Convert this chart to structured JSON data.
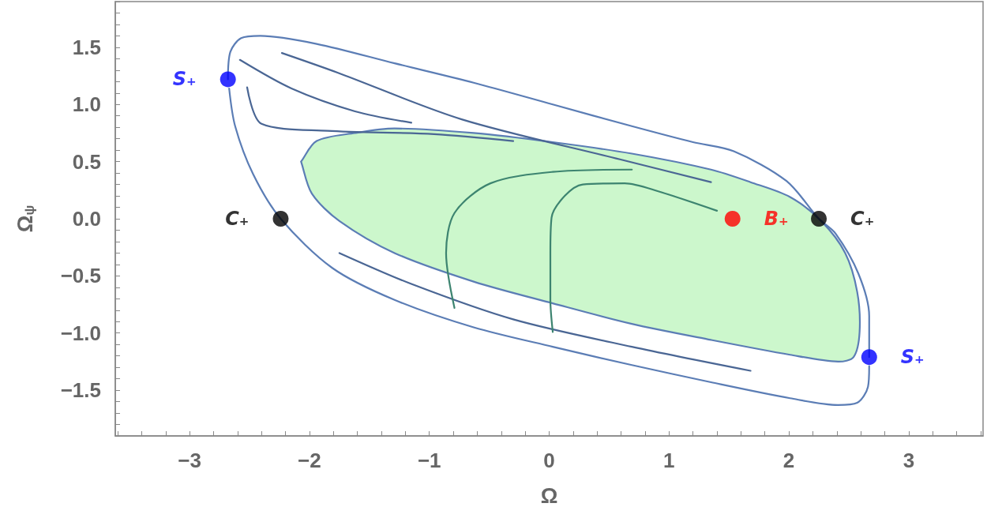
{
  "chart_data": {
    "type": "line",
    "xlabel": "Ω",
    "ylabel": "Ω$_{ψ}$",
    "xlim": [
      -3.62,
      3.62
    ],
    "ylim": [
      -1.9,
      1.9
    ],
    "xticks": [
      {
        "value": -3.6,
        "label": null
      },
      {
        "value": -3.4,
        "label": null
      },
      {
        "value": -3.2,
        "label": null
      },
      {
        "value": -3,
        "label": "−3"
      },
      {
        "value": -2.8,
        "label": null
      },
      {
        "value": -2.6,
        "label": null
      },
      {
        "value": -2.4,
        "label": null
      },
      {
        "value": -2.2,
        "label": null
      },
      {
        "value": -2,
        "label": "−2"
      },
      {
        "value": -1.8,
        "label": null
      },
      {
        "value": -1.6,
        "label": null
      },
      {
        "value": -1.4,
        "label": null
      },
      {
        "value": -1.2,
        "label": null
      },
      {
        "value": -1,
        "label": "−1"
      },
      {
        "value": -0.8,
        "label": null
      },
      {
        "value": -0.6,
        "label": null
      },
      {
        "value": -0.4,
        "label": null
      },
      {
        "value": -0.2,
        "label": null
      },
      {
        "value": 0,
        "label": "0"
      },
      {
        "value": 0.2,
        "label": null
      },
      {
        "value": 0.4,
        "label": null
      },
      {
        "value": 0.6,
        "label": null
      },
      {
        "value": 0.8,
        "label": null
      },
      {
        "value": 1,
        "label": "1"
      },
      {
        "value": 1.2,
        "label": null
      },
      {
        "value": 1.4,
        "label": null
      },
      {
        "value": 1.6,
        "label": null
      },
      {
        "value": 1.8,
        "label": null
      },
      {
        "value": 2,
        "label": "2"
      },
      {
        "value": 2.2,
        "label": null
      },
      {
        "value": 2.4,
        "label": null
      },
      {
        "value": 2.6,
        "label": null
      },
      {
        "value": 2.8,
        "label": null
      },
      {
        "value": 3,
        "label": "3"
      },
      {
        "value": 3.2,
        "label": null
      },
      {
        "value": 3.4,
        "label": null
      },
      {
        "value": 3.6,
        "label": null
      }
    ],
    "yticks": [
      {
        "value": -1.9,
        "label": null
      },
      {
        "value": -1.8,
        "label": null
      },
      {
        "value": -1.7,
        "label": null
      },
      {
        "value": -1.6,
        "label": null
      },
      {
        "value": -1.5,
        "label": "−1.5"
      },
      {
        "value": -1.4,
        "label": null
      },
      {
        "value": -1.3,
        "label": null
      },
      {
        "value": -1.2,
        "label": null
      },
      {
        "value": -1.1,
        "label": null
      },
      {
        "value": -1,
        "label": "−1.0"
      },
      {
        "value": -0.9,
        "label": null
      },
      {
        "value": -0.8,
        "label": null
      },
      {
        "value": -0.7,
        "label": null
      },
      {
        "value": -0.6,
        "label": null
      },
      {
        "value": -0.5,
        "label": "−0.5"
      },
      {
        "value": -0.4,
        "label": null
      },
      {
        "value": -0.3,
        "label": null
      },
      {
        "value": -0.2,
        "label": null
      },
      {
        "value": -0.1,
        "label": null
      },
      {
        "value": 0,
        "label": "0.0"
      },
      {
        "value": 0.1,
        "label": null
      },
      {
        "value": 0.2,
        "label": null
      },
      {
        "value": 0.3,
        "label": null
      },
      {
        "value": 0.4,
        "label": null
      },
      {
        "value": 0.5,
        "label": "0.5"
      },
      {
        "value": 0.6,
        "label": null
      },
      {
        "value": 0.7,
        "label": null
      },
      {
        "value": 0.8,
        "label": null
      },
      {
        "value": 0.9,
        "label": null
      },
      {
        "value": 1,
        "label": "1.0"
      },
      {
        "value": 1.1,
        "label": null
      },
      {
        "value": 1.2,
        "label": null
      },
      {
        "value": 1.3,
        "label": null
      },
      {
        "value": 1.4,
        "label": null
      },
      {
        "value": 1.5,
        "label": "1.5"
      },
      {
        "value": 1.6,
        "label": null
      },
      {
        "value": 1.7,
        "label": null
      },
      {
        "value": 1.8,
        "label": null
      },
      {
        "value": 1.9,
        "label": null
      }
    ],
    "series": [
      {
        "type": "area",
        "color": "#ccf7cc",
        "x": [
          -2.07,
          -1.94,
          -1.62,
          -1.29,
          -0.63,
          0.03,
          0.69,
          1.35,
          1.68,
          2.01,
          2.27,
          2.47,
          2.57,
          2.59,
          2.54,
          2.41,
          2.01,
          1.35,
          0.69,
          0.03,
          -0.63,
          -1.29,
          -1.75,
          -1.98,
          -2.07
        ],
        "values": [
          0.5,
          0.68,
          0.75,
          0.79,
          0.75,
          0.67,
          0.57,
          0.43,
          0.32,
          0.19,
          -0.02,
          -0.3,
          -0.64,
          -0.99,
          -1.21,
          -1.25,
          -1.19,
          -1.06,
          -0.92,
          -0.74,
          -0.55,
          -0.3,
          -0.02,
          0.22,
          0.5
        ]
      },
      {
        "type": "line",
        "color": "#4a6694",
        "x": [
          -2.23,
          -1.77,
          -0.73,
          0.59,
          1.35
        ],
        "values": [
          1.45,
          1.28,
          0.87,
          0.52,
          0.32
        ]
      },
      {
        "type": "line",
        "color": "#4a6694",
        "x": [
          -2.58,
          -2.15,
          -1.62,
          -1.15
        ],
        "values": [
          1.39,
          1.14,
          0.94,
          0.84
        ]
      },
      {
        "type": "line",
        "color": "#4a6694",
        "x": [
          -2.52,
          -2.4,
          -1.85,
          -0.96,
          -0.3
        ],
        "values": [
          1.15,
          0.83,
          0.77,
          0.74,
          0.68
        ]
      },
      {
        "type": "line",
        "color": "#4a6694",
        "x": [
          1.68,
          0.69,
          -0.3,
          -1.15,
          -1.75
        ],
        "values": [
          -1.33,
          -1.12,
          -0.88,
          -0.57,
          -0.3
        ]
      },
      {
        "type": "line",
        "color": "#3d8470",
        "x": [
          0.03,
          0.01,
          0.01,
          0.02,
          0.13,
          0.28,
          0.63,
          0.91,
          1.4
        ],
        "values": [
          -0.99,
          -0.71,
          -0.3,
          0.01,
          0.2,
          0.3,
          0.31,
          0.24,
          0.07
        ]
      },
      {
        "type": "line",
        "color": "#3d8470",
        "x": [
          -0.79,
          -0.86,
          -0.79,
          -0.49,
          0.03,
          0.69
        ],
        "values": [
          -0.78,
          -0.3,
          0.05,
          0.31,
          0.41,
          0.43
        ]
      },
      {
        "type": "line",
        "color": "#5b7db5",
        "x": [
          -2.68,
          -2.66,
          -2.57,
          -2.41,
          -1.94,
          -1.29,
          -0.63,
          0.03,
          0.69,
          1.2,
          1.54,
          1.98,
          2.25,
          2.39,
          2.58,
          2.67,
          2.67
        ],
        "values": [
          1.22,
          1.46,
          1.58,
          1.6,
          1.53,
          1.36,
          1.19,
          1.0,
          0.81,
          0.67,
          0.59,
          0.33,
          0,
          -0.13,
          -0.48,
          -0.85,
          -1.21
        ]
      },
      {
        "type": "line",
        "color": "#5b7db5",
        "x": [
          2.67,
          2.66,
          2.57,
          2.41,
          2.01,
          1.35,
          0.69,
          0.03,
          -0.63,
          -1.29,
          -1.81,
          -2.24,
          -2.47,
          -2.62,
          -2.67
        ],
        "values": [
          -1.29,
          -1.47,
          -1.61,
          -1.63,
          -1.57,
          -1.43,
          -1.28,
          -1.12,
          -0.95,
          -0.71,
          -0.43,
          0,
          0.39,
          0.81,
          1.14
        ]
      },
      {
        "type": "scatter",
        "marker": "circle",
        "colors": [
          "#0000ff",
          "#000000",
          "#ff0000",
          "#000000",
          "#0000ff"
        ],
        "x": [
          -2.68,
          -2.24,
          1.53,
          2.25,
          2.67
        ],
        "values": [
          1.22,
          0,
          0,
          0,
          -1.21
        ],
        "value_labels": [
          "S₊",
          "C₊",
          "B₊",
          "C₊",
          "S₊"
        ]
      }
    ]
  }
}
